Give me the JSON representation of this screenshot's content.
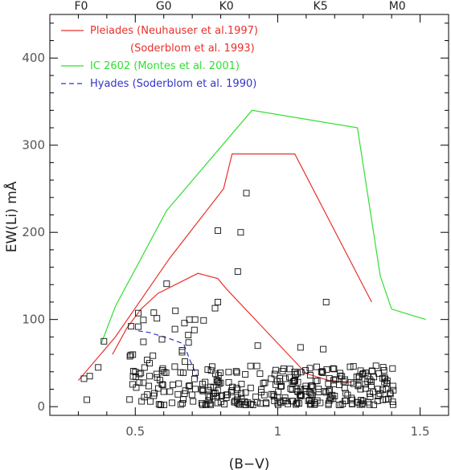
{
  "chart_data": {
    "type": "scatter",
    "xlabel": "(B−V)",
    "ylabel": "EW(Li)  mÅ",
    "xlim": [
      0.2,
      1.6
    ],
    "ylim": [
      -10,
      450
    ],
    "x_ticks": [
      {
        "value": 0.5,
        "label": "0.5"
      },
      {
        "value": 1.0,
        "label": "1"
      },
      {
        "value": 1.5,
        "label": "1.5"
      }
    ],
    "y_ticks": [
      {
        "value": 0,
        "label": "0"
      },
      {
        "value": 100,
        "label": "100"
      },
      {
        "value": 200,
        "label": "200"
      },
      {
        "value": 300,
        "label": "300"
      },
      {
        "value": 400,
        "label": "400"
      }
    ],
    "spectral_types": [
      {
        "label": "F0",
        "x": 0.31
      },
      {
        "label": "G0",
        "x": 0.6
      },
      {
        "label": "K0",
        "x": 0.82
      },
      {
        "label": "K5",
        "x": 1.15
      },
      {
        "label": "M0",
        "x": 1.42
      }
    ],
    "legend": [
      {
        "lines": [
          "Pleiades (Neuhauser et al.1997)",
          "(Soderblom et al. 1993)"
        ],
        "color": "#e8312b",
        "dash": false
      },
      {
        "lines": [
          "IC 2602 (Montes et al. 2001)"
        ],
        "color": "#33dd33",
        "dash": false
      },
      {
        "lines": [
          "Hyades (Soderblom et al. 1990)"
        ],
        "color": "#3333cc",
        "dash": true
      }
    ],
    "envelopes": [
      {
        "color": "#33dd33",
        "dash": false,
        "points": [
          [
            0.38,
            72
          ],
          [
            0.43,
            115
          ],
          [
            0.61,
            225
          ],
          [
            0.91,
            340
          ],
          [
            1.28,
            320
          ],
          [
            1.36,
            150
          ],
          [
            1.4,
            112
          ],
          [
            1.52,
            100
          ]
        ]
      },
      {
        "color": "#e8312b",
        "dash": false,
        "points": [
          [
            0.3,
            30
          ],
          [
            0.43,
            80
          ],
          [
            0.62,
            170
          ],
          [
            0.81,
            250
          ],
          [
            0.84,
            290
          ],
          [
            1.06,
            290
          ],
          [
            1.33,
            120
          ]
        ]
      },
      {
        "color": "#e8312b",
        "dash": false,
        "points": [
          [
            0.42,
            60
          ],
          [
            0.47,
            90
          ],
          [
            0.52,
            112
          ],
          [
            0.58,
            130
          ],
          [
            0.72,
            153
          ],
          [
            0.79,
            147
          ],
          [
            0.82,
            135
          ],
          [
            0.95,
            90
          ],
          [
            1.1,
            38
          ],
          [
            1.18,
            30
          ],
          [
            1.26,
            28
          ]
        ]
      },
      {
        "color": "#3333cc",
        "dash": true,
        "points": [
          [
            0.51,
            87
          ],
          [
            0.55,
            85
          ],
          [
            0.62,
            78
          ],
          [
            0.67,
            72
          ],
          [
            0.69,
            55
          ],
          [
            0.72,
            32
          ]
        ]
      }
    ],
    "outliers": [
      [
        0.89,
        245
      ],
      [
        0.79,
        202
      ],
      [
        0.87,
        200
      ],
      [
        0.86,
        155
      ],
      [
        1.17,
        120
      ],
      [
        0.61,
        141
      ],
      [
        0.79,
        120
      ],
      [
        0.78,
        113
      ],
      [
        0.69,
        100
      ],
      [
        0.71,
        100
      ],
      [
        0.74,
        99
      ],
      [
        0.93,
        70
      ],
      [
        1.08,
        68
      ],
      [
        1.16,
        66
      ],
      [
        0.34,
        35
      ],
      [
        0.39,
        75
      ],
      [
        0.37,
        45
      ],
      [
        0.32,
        32
      ],
      [
        0.33,
        8
      ]
    ],
    "cluster_seed": 7,
    "cluster_count": 350
  }
}
